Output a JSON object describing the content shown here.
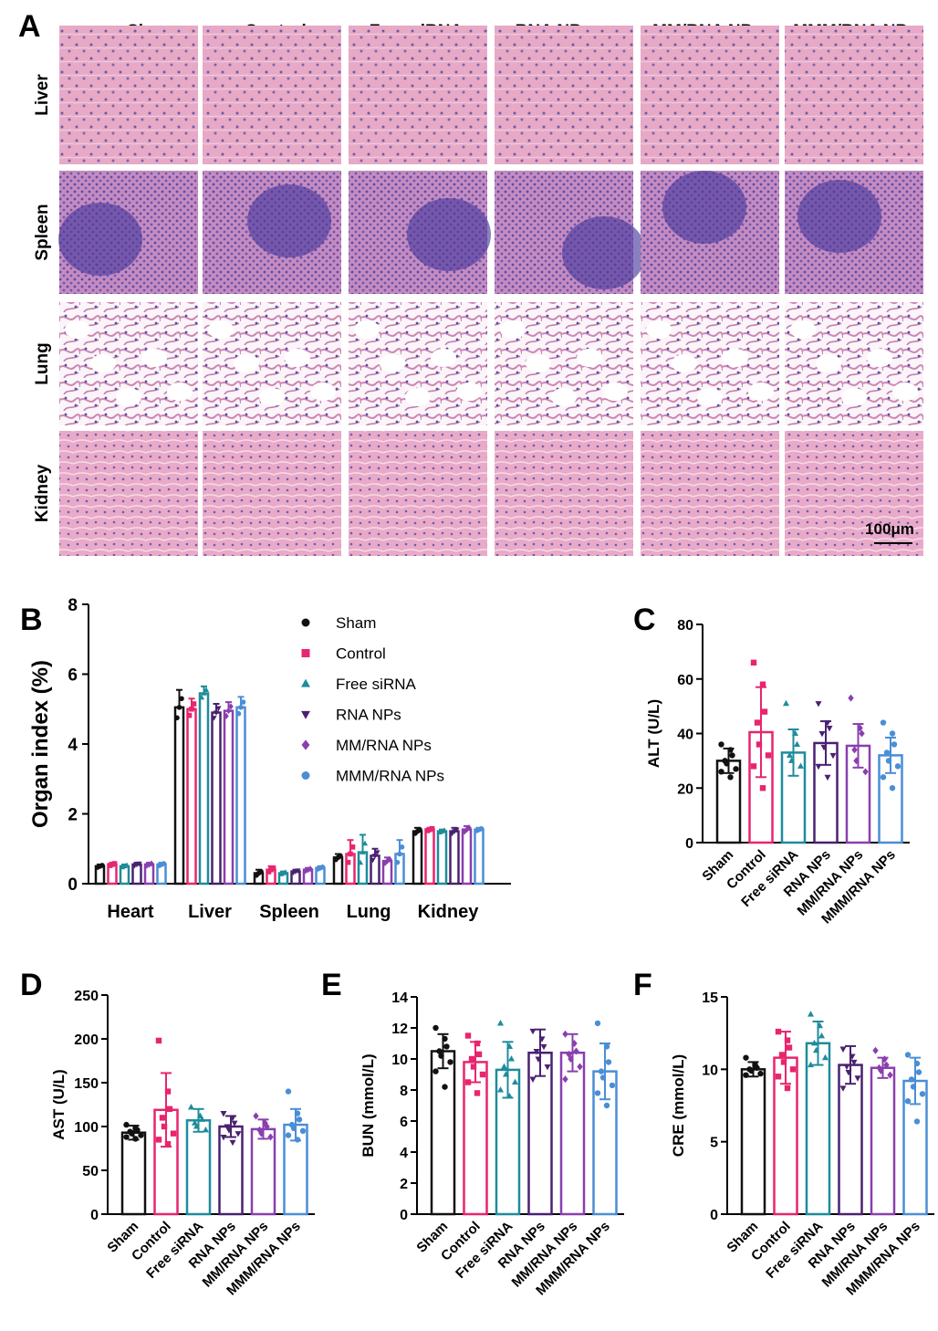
{
  "figure": {
    "panel_labels": [
      "A",
      "B",
      "C",
      "D",
      "E",
      "F"
    ],
    "groups": [
      "Sham",
      "Control",
      "Free siRNA",
      "RNA NPs",
      "MM/RNA NPs",
      "MMM/RNA NPs"
    ],
    "group_colors": [
      "#111111",
      "#e8256e",
      "#1e8c9c",
      "#4a2170",
      "#8a3fae",
      "#4a8ed6"
    ],
    "tissues": [
      "Liver",
      "Spleen",
      "Lung",
      "Kidney"
    ],
    "scale_bar_label": "100μm"
  },
  "chart_data": [
    {
      "panel": "B",
      "type": "bar",
      "ylabel": "Organ index (%)",
      "ylim": [
        0,
        8
      ],
      "yticks": [
        0,
        2,
        4,
        6,
        8
      ],
      "categories": [
        "Heart",
        "Liver",
        "Spleen",
        "Lung",
        "Kidney"
      ],
      "legend": [
        "Sham",
        "Control",
        "Free siRNA",
        "RNA NPs",
        "MM/RNA NPs",
        "MMM/RNA NPs"
      ],
      "legend_markers": [
        "circle",
        "square",
        "triangle",
        "triangle-down",
        "diamond",
        "circle"
      ],
      "series": [
        {
          "name": "Sham",
          "values": [
            0.5,
            5.05,
            0.3,
            0.75,
            1.5
          ],
          "errors": [
            0.05,
            0.5,
            0.1,
            0.1,
            0.1
          ]
        },
        {
          "name": "Control",
          "values": [
            0.55,
            5.0,
            0.4,
            0.85,
            1.55
          ],
          "errors": [
            0.05,
            0.3,
            0.1,
            0.4,
            0.05
          ]
        },
        {
          "name": "Free siRNA",
          "values": [
            0.5,
            5.45,
            0.3,
            0.9,
            1.5
          ],
          "errors": [
            0.05,
            0.2,
            0.05,
            0.5,
            0.05
          ]
        },
        {
          "name": "RNA NPs",
          "values": [
            0.55,
            4.9,
            0.35,
            0.8,
            1.5
          ],
          "errors": [
            0.05,
            0.25,
            0.05,
            0.2,
            0.1
          ]
        },
        {
          "name": "MM/RNA NPs",
          "values": [
            0.55,
            4.95,
            0.4,
            0.65,
            1.55
          ],
          "errors": [
            0.05,
            0.25,
            0.05,
            0.1,
            0.1
          ]
        },
        {
          "name": "MMM/RNA NPs",
          "values": [
            0.55,
            5.05,
            0.45,
            0.85,
            1.55
          ],
          "errors": [
            0.05,
            0.3,
            0.05,
            0.4,
            0.05
          ]
        }
      ]
    },
    {
      "panel": "C",
      "type": "bar",
      "ylabel": "ALT (U/L)",
      "ylim": [
        0,
        80
      ],
      "yticks": [
        0,
        20,
        40,
        60,
        80
      ],
      "categories": [
        "Sham",
        "Control",
        "Free siRNA",
        "RNA NPs",
        "MM/RNA NPs",
        "MMM/RNA NPs"
      ],
      "values": [
        30,
        40.5,
        33,
        36.5,
        35.5,
        32
      ],
      "errors": [
        4.5,
        16.5,
        8.5,
        8,
        8,
        6.5
      ],
      "points": [
        [
          36,
          34,
          32,
          30,
          29,
          27,
          26,
          24
        ],
        [
          66,
          58,
          48,
          44,
          36,
          32,
          28,
          20
        ],
        [
          51,
          40,
          36,
          32,
          30,
          28
        ],
        [
          51,
          44,
          42,
          40,
          35,
          32,
          28,
          24
        ],
        [
          53,
          42,
          40,
          34,
          30,
          26
        ],
        [
          44,
          40,
          36,
          33,
          30,
          28,
          24,
          20
        ]
      ]
    },
    {
      "panel": "D",
      "type": "bar",
      "ylabel": "AST (U/L)",
      "ylim": [
        0,
        250
      ],
      "yticks": [
        0,
        50,
        100,
        150,
        200,
        250
      ],
      "categories": [
        "Sham",
        "Control",
        "Free siRNA",
        "RNA NPs",
        "MM/RNA NPs",
        "MMM/RNA NPs"
      ],
      "values": [
        93,
        119,
        107,
        100,
        97,
        102
      ],
      "errors": [
        8,
        42,
        13,
        12,
        11,
        18
      ],
      "points": [
        [
          102,
          98,
          96,
          94,
          92,
          90,
          88,
          86
        ],
        [
          198,
          140,
          120,
          110,
          100,
          92,
          85,
          80
        ],
        [
          122,
          112,
          108,
          104,
          100,
          96
        ],
        [
          115,
          110,
          104,
          100,
          96,
          92,
          88,
          82
        ],
        [
          112,
          104,
          100,
          96,
          92,
          88
        ],
        [
          140,
          115,
          108,
          102,
          98,
          95,
          90,
          85
        ]
      ]
    },
    {
      "panel": "E",
      "type": "bar",
      "ylabel": "BUN (mmol/L)",
      "ylim": [
        0,
        14
      ],
      "yticks": [
        0,
        2,
        4,
        6,
        8,
        10,
        12,
        14
      ],
      "categories": [
        "Sham",
        "Control",
        "Free siRNA",
        "RNA NPs",
        "MM/RNA NPs",
        "MMM/RNA NPs"
      ],
      "values": [
        10.5,
        9.8,
        9.3,
        10.4,
        10.4,
        9.2
      ],
      "errors": [
        1.1,
        1.3,
        1.8,
        1.5,
        1.2,
        1.8
      ],
      "points": [
        [
          12,
          11.3,
          10.8,
          10.5,
          10.2,
          9.8,
          9.2,
          8.2
        ],
        [
          11.5,
          11,
          10.3,
          10,
          9.5,
          9,
          8.5,
          7.8
        ],
        [
          12.3,
          10.8,
          10,
          9.5,
          9,
          8.5,
          8,
          7.6
        ],
        [
          11.8,
          11.3,
          10.8,
          10.5,
          10,
          9.5,
          8.7
        ],
        [
          11.6,
          11,
          10.5,
          10.3,
          10,
          9.5,
          8.7
        ],
        [
          12.3,
          10.8,
          9.8,
          9.2,
          8.8,
          8.3,
          7.8,
          7
        ]
      ]
    },
    {
      "panel": "F",
      "type": "bar",
      "ylabel": "CRE (mmol/L)",
      "ylim": [
        0,
        15
      ],
      "yticks": [
        0,
        5,
        10,
        15
      ],
      "categories": [
        "Sham",
        "Control",
        "Free siRNA",
        "RNA NPs",
        "MM/RNA NPs",
        "MMM/RNA NPs"
      ],
      "values": [
        10,
        10.8,
        11.8,
        10.3,
        10.1,
        9.2
      ],
      "errors": [
        0.5,
        1.8,
        1.5,
        1.3,
        0.7,
        1.6
      ],
      "points": [
        [
          10.8,
          10.3,
          10.1,
          10,
          9.9,
          9.7,
          9.6
        ],
        [
          12.6,
          12,
          11.5,
          11,
          10.5,
          10,
          9.5,
          8.7
        ],
        [
          13.8,
          13,
          12.3,
          11.8,
          11.3,
          10.8,
          10.3
        ],
        [
          11.4,
          10.9,
          10.5,
          10.2,
          9.8,
          9.4,
          8.7
        ],
        [
          11.3,
          10.7,
          10.3,
          10.1,
          9.9,
          9.6
        ],
        [
          11,
          10.4,
          9.8,
          9.3,
          8.8,
          8.3,
          7.8,
          6.4
        ]
      ]
    }
  ]
}
